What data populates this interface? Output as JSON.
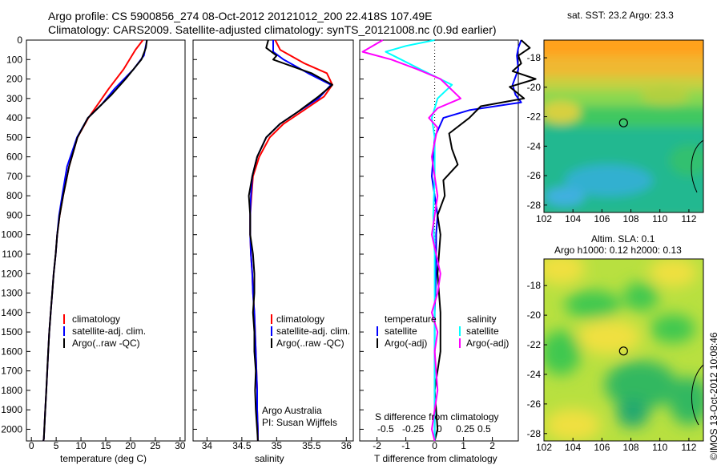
{
  "header": {
    "title_line1": "Argo profile: CS 5900856_274 08-Oct-2012 20121012_200 22.418S 107.49E",
    "title_line2": "Climatology: CARS2009. Satellite-adjusted climatology: synTS_20121008.nc (0.9d earlier)"
  },
  "colors": {
    "climatology": "#ff0000",
    "satellite": "#0000ff",
    "argo": "#000000",
    "satellite_diff": "#00ffff",
    "argo_diff": "#ff00ff"
  },
  "chart_data": [
    {
      "type": "line",
      "panel": "temperature",
      "xlabel": "temperature (deg C)",
      "ylabel": "",
      "xlim": [
        -1,
        31
      ],
      "ylim": [
        2060,
        0
      ],
      "xticks": [
        0,
        5,
        10,
        15,
        20,
        25,
        30
      ],
      "yticks": [
        0,
        100,
        200,
        300,
        400,
        500,
        600,
        700,
        800,
        900,
        1000,
        1100,
        1200,
        1300,
        1400,
        1500,
        1600,
        1700,
        1800,
        1900,
        2000
      ],
      "legend": [
        "climatology",
        "satellite-adj. clim.",
        "Argo(..raw -QC)"
      ],
      "legend_position": "bottom-middle",
      "series": [
        {
          "name": "climatology",
          "color": "#ff0000",
          "x": [
            22.5,
            21.0,
            18.6,
            15.6,
            11.5,
            9.3,
            7.6,
            6.4,
            5.7,
            5.2,
            4.9,
            4.5,
            4.2,
            3.9,
            3.6,
            3.4,
            3.2,
            3.0,
            2.8,
            2.6,
            2.5,
            2.4
          ],
          "y": [
            0,
            50,
            150,
            250,
            400,
            500,
            650,
            800,
            900,
            1000,
            1100,
            1200,
            1300,
            1400,
            1500,
            1600,
            1700,
            1800,
            1900,
            2000,
            2050,
            2060
          ]
        },
        {
          "name": "satellite-adj. clim.",
          "color": "#0000ff",
          "x": [
            23.3,
            22.7,
            20.6,
            16.8,
            14.2,
            11.4,
            9.2,
            7.2,
            6.2,
            5.6,
            5.2,
            4.9,
            4.5,
            4.2,
            3.9,
            3.6,
            3.4,
            3.2,
            3.0,
            2.8,
            2.6,
            2.5,
            2.4
          ],
          "y": [
            0,
            80,
            150,
            250,
            330,
            400,
            500,
            650,
            800,
            900,
            1000,
            1100,
            1200,
            1300,
            1400,
            1500,
            1600,
            1700,
            1800,
            1900,
            2000,
            2050,
            2060
          ]
        },
        {
          "name": "Argo(..raw -QC)",
          "color": "#000000",
          "x": [
            23.3,
            23.1,
            22.2,
            19.0,
            16.2,
            11.4,
            9.3,
            7.6,
            6.4,
            5.7,
            5.2,
            4.9,
            4.5,
            4.2,
            3.9,
            3.6,
            3.4,
            3.2,
            3.0,
            2.8,
            2.6,
            2.5,
            2.4
          ],
          "y": [
            0,
            40,
            100,
            200,
            280,
            400,
            500,
            650,
            800,
            900,
            1000,
            1100,
            1200,
            1300,
            1400,
            1500,
            1600,
            1700,
            1800,
            1900,
            2000,
            2050,
            2060
          ]
        }
      ]
    },
    {
      "type": "line",
      "panel": "salinity",
      "xlabel": "salinity",
      "ylabel": "",
      "xlim": [
        33.8,
        36.1
      ],
      "ylim": [
        2060,
        0
      ],
      "xticks": [
        34,
        34.5,
        35,
        35.5,
        36
      ],
      "legend": [
        "climatology",
        "satellite-adj. clim.",
        "Argo(..raw -QC)"
      ],
      "legend_position": "bottom-right",
      "annotation_line1": "Argo Australia",
      "annotation_line2": "PI: Susan Wijffels",
      "series": [
        {
          "name": "climatology",
          "color": "#ff0000",
          "x": [
            34.98,
            35.05,
            35.4,
            35.72,
            35.8,
            35.68,
            35.35,
            35.1,
            34.9,
            34.75,
            34.66,
            34.64,
            34.62,
            34.62,
            34.63,
            34.65,
            34.66,
            34.68,
            34.69,
            34.7,
            34.71,
            34.72,
            34.72,
            34.73,
            34.73
          ],
          "y": [
            0,
            50,
            120,
            170,
            230,
            290,
            370,
            430,
            500,
            600,
            700,
            800,
            900,
            1000,
            1100,
            1200,
            1300,
            1400,
            1500,
            1600,
            1700,
            1800,
            1900,
            2000,
            2060
          ]
        },
        {
          "name": "satellite-adj. clim.",
          "color": "#0000ff",
          "x": [
            34.95,
            34.95,
            35.1,
            35.45,
            35.78,
            35.6,
            35.3,
            35.05,
            34.85,
            34.72,
            34.65,
            34.63,
            34.62,
            34.62,
            34.63,
            34.65,
            34.66,
            34.68,
            34.69,
            34.7,
            34.71,
            34.72,
            34.72,
            34.73,
            34.73
          ],
          "y": [
            0,
            60,
            100,
            170,
            230,
            300,
            370,
            430,
            500,
            600,
            700,
            800,
            900,
            1000,
            1100,
            1200,
            1300,
            1400,
            1500,
            1600,
            1700,
            1800,
            1900,
            2000,
            2060
          ]
        },
        {
          "name": "Argo(..raw -QC)",
          "color": "#000000",
          "x": [
            34.88,
            34.85,
            35.0,
            34.95,
            35.5,
            35.8,
            35.6,
            35.3,
            35.05,
            34.85,
            34.72,
            34.65,
            34.6,
            34.62,
            34.62,
            34.66,
            34.68,
            34.68,
            34.66,
            34.68,
            34.68,
            34.7,
            34.69,
            34.7,
            34.72,
            34.73
          ],
          "y": [
            0,
            40,
            80,
            100,
            170,
            230,
            290,
            370,
            430,
            500,
            600,
            700,
            800,
            900,
            1000,
            1100,
            1200,
            1300,
            1400,
            1500,
            1600,
            1700,
            1800,
            1900,
            2000,
            2060
          ]
        }
      ]
    },
    {
      "type": "line",
      "panel": "difference",
      "xlabel": "T difference from climatology",
      "xlabel_top": "S difference from climatology",
      "ylabel": "",
      "xlim": [
        -2.6,
        2.9
      ],
      "ylim": [
        2060,
        0
      ],
      "xticks": [
        -2,
        -1,
        0,
        1,
        2
      ],
      "s_scale_ticks": [
        "-0.5",
        "-0.25",
        "0",
        "0.25",
        "0.5"
      ],
      "legend_temperature": {
        "header": "temperature",
        "satellite": "satellite",
        "argo": "Argo(-adj)"
      },
      "legend_salinity": {
        "header": "salinity",
        "satellite": "satellite",
        "argo": "Argo(-adj)"
      },
      "legend_position": "middle",
      "zero_line": "dotted",
      "series": [
        {
          "name": "satellite",
          "color": "#0000ff",
          "x": [
            3.0,
            2.9,
            2.85,
            2.9,
            2.7,
            2.8,
            3.0,
            1.2,
            0.3,
            0.0,
            -0.05,
            -0.1,
            0.0,
            0.1,
            0.05,
            0.05,
            0.0,
            0.0,
            0.0,
            0.0,
            0.0,
            0.0,
            0.0
          ],
          "y": [
            0,
            40,
            80,
            150,
            230,
            280,
            320,
            360,
            400,
            500,
            600,
            700,
            800,
            900,
            1000,
            1200,
            1400,
            1600,
            1800,
            1900,
            2000,
            2050,
            2060
          ]
        },
        {
          "name": "Argo(-adj)",
          "color": "#000000",
          "x": [
            3.0,
            3.3,
            2.9,
            3.0,
            2.7,
            3.5,
            2.6,
            3.1,
            1.6,
            1.2,
            0.5,
            0.6,
            0.8,
            0.3,
            0.35,
            0.1,
            0.2,
            0.1,
            0.2,
            0.2,
            0.0,
            0.1,
            0.0
          ],
          "y": [
            0,
            40,
            80,
            120,
            160,
            200,
            240,
            300,
            340,
            400,
            480,
            560,
            640,
            720,
            800,
            900,
            1000,
            1200,
            1400,
            1600,
            1800,
            2000,
            2060
          ]
        },
        {
          "name": "satellite (S)",
          "color": "#00ffff",
          "x": [
            0.0,
            -1.0,
            -1.7,
            -1.3,
            -0.5,
            0.6,
            0.1,
            -0.1,
            0.0,
            0.0,
            -0.05,
            0.0,
            0.0,
            0.0,
            0.0,
            0.0,
            0.0,
            0.0
          ],
          "y": [
            0,
            30,
            60,
            90,
            150,
            230,
            300,
            400,
            500,
            700,
            900,
            1100,
            1300,
            1500,
            1700,
            1900,
            2000,
            2060
          ]
        },
        {
          "name": "Argo(-adj) (S)",
          "color": "#ff00ff",
          "x": [
            -1.8,
            -2.5,
            -1.5,
            -0.6,
            0.2,
            0.9,
            0.1,
            -0.2,
            0.1,
            -0.1,
            0.1,
            -0.1,
            0.2,
            0.1,
            -0.1,
            0.1,
            0.0,
            0.1,
            -0.1,
            0.0
          ],
          "y": [
            0,
            60,
            100,
            150,
            200,
            300,
            350,
            400,
            450,
            600,
            800,
            1000,
            1200,
            1300,
            1400,
            1500,
            1600,
            1800,
            2000,
            2060
          ]
        }
      ]
    },
    {
      "type": "heatmap",
      "panel": "sst_map",
      "title": "sat. SST: 23.2 Argo: 23.3",
      "xlim": [
        102,
        113
      ],
      "ylim": [
        -28.5,
        -16.8
      ],
      "xticks": [
        102,
        104,
        106,
        108,
        110,
        112
      ],
      "yticks": [
        -18,
        -20,
        -22,
        -24,
        -26,
        -28
      ],
      "marker": {
        "x": 107.49,
        "y": -22.418
      }
    },
    {
      "type": "heatmap",
      "panel": "sla_map",
      "title_line1": "Altim. SLA: 0.1",
      "title_line2": "Argo h1000: 0.12 h2000: 0.13",
      "xlim": [
        102,
        113
      ],
      "ylim": [
        -28.5,
        -16.2
      ],
      "xticks": [
        102,
        104,
        106,
        108,
        110,
        112
      ],
      "yticks": [
        -18,
        -20,
        -22,
        -24,
        -26,
        -28
      ],
      "marker": {
        "x": 107.49,
        "y": -22.418
      }
    }
  ],
  "footer": {
    "stamp": "©IMOS 13-Oct-2012 10:08:46"
  }
}
